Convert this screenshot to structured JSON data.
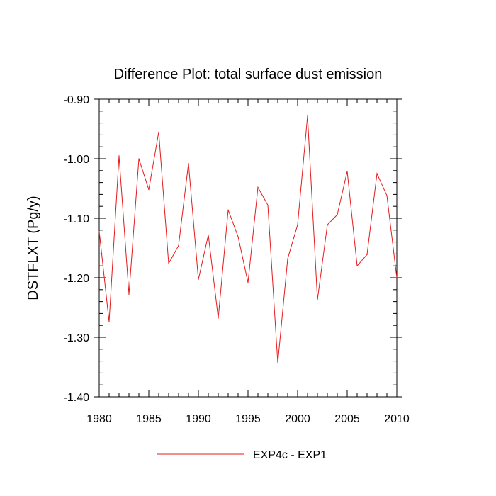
{
  "chart_data": {
    "type": "line",
    "title": "Difference Plot: total surface dust emission",
    "xlabel": "",
    "ylabel": "DSTFLXT  (Pg/y)",
    "xlim": [
      1980,
      2010
    ],
    "ylim": [
      -1.4,
      -0.9
    ],
    "x_ticks": [
      "1980",
      "1985",
      "1990",
      "1995",
      "2000",
      "2005",
      "2010"
    ],
    "y_ticks": [
      "-0.90",
      "-1.00",
      "-1.10",
      "-1.20",
      "-1.30",
      "-1.40"
    ],
    "grid": false,
    "legend_position": "bottom",
    "series": [
      {
        "name": "EXP4c - EXP1",
        "color": "#e41a1c",
        "x": [
          1980,
          1981,
          1982,
          1983,
          1984,
          1985,
          1986,
          1987,
          1988,
          1989,
          1990,
          1991,
          1992,
          1993,
          1994,
          1995,
          1996,
          1997,
          1998,
          1999,
          2000,
          2001,
          2002,
          2003,
          2004,
          2005,
          2006,
          2007,
          2008,
          2009,
          2010
        ],
        "values": [
          -1.122,
          -1.274,
          -0.995,
          -1.228,
          -1.0,
          -1.052,
          -0.955,
          -1.176,
          -1.146,
          -1.008,
          -1.203,
          -1.128,
          -1.268,
          -1.086,
          -1.131,
          -1.208,
          -1.048,
          -1.078,
          -1.343,
          -1.168,
          -1.111,
          -0.928,
          -1.237,
          -1.111,
          -1.094,
          -1.021,
          -1.18,
          -1.161,
          -1.025,
          -1.062,
          -1.2
        ]
      }
    ]
  }
}
